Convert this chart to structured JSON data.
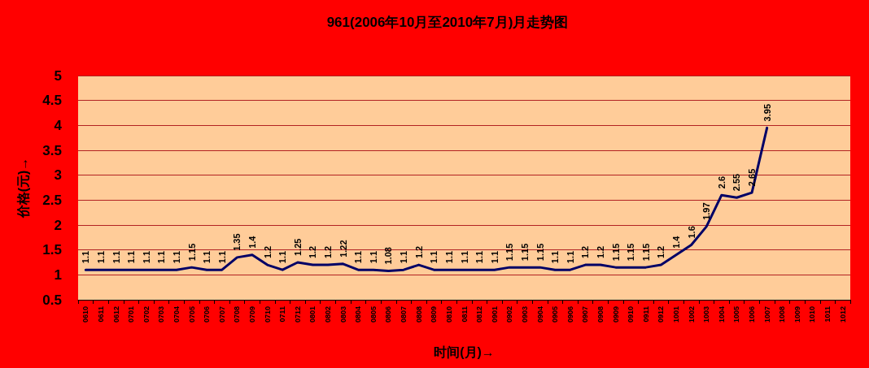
{
  "chart_data": {
    "type": "line",
    "title": "961(2006年10月至2010年7月)月走势图",
    "xlabel": "时间(月)→",
    "ylabel": "价格(元)→",
    "categories": [
      "0610",
      "0611",
      "0612",
      "0701",
      "0702",
      "0703",
      "0704",
      "0705",
      "0706",
      "0707",
      "0708",
      "0709",
      "0710",
      "0711",
      "0712",
      "0801",
      "0802",
      "0803",
      "0804",
      "0805",
      "0806",
      "0807",
      "0808",
      "0809",
      "0810",
      "0811",
      "0812",
      "0901",
      "0902",
      "0903",
      "0904",
      "0905",
      "0906",
      "0907",
      "0908",
      "0909",
      "0910",
      "0911",
      "0912",
      "1001",
      "1002",
      "1003",
      "1004",
      "1005",
      "1006",
      "1007",
      "1008",
      "1009",
      "1010",
      "1011",
      "1012"
    ],
    "series": [
      {
        "color": "#000066",
        "values": [
          1.1,
          1.1,
          1.1,
          1.1,
          1.1,
          1.1,
          1.1,
          1.15,
          1.1,
          1.1,
          1.35,
          1.4,
          1.2,
          1.1,
          1.25,
          1.2,
          1.2,
          1.22,
          1.1,
          1.1,
          1.08,
          1.1,
          1.2,
          1.1,
          1.1,
          1.1,
          1.1,
          1.1,
          1.15,
          1.15,
          1.15,
          1.1,
          1.1,
          1.2,
          1.2,
          1.15,
          1.15,
          1.15,
          1.2,
          1.4,
          1.6,
          1.97,
          2.6,
          2.55,
          2.65,
          3.95,
          null,
          null,
          null,
          null,
          null
        ]
      }
    ],
    "ylim": [
      0.5,
      5
    ],
    "yticks": [
      0.5,
      1,
      1.5,
      2,
      2.5,
      3,
      3.5,
      4,
      4.5,
      5
    ],
    "grid": "y",
    "data_labels": true,
    "marker": "none",
    "line_style": "solid"
  }
}
